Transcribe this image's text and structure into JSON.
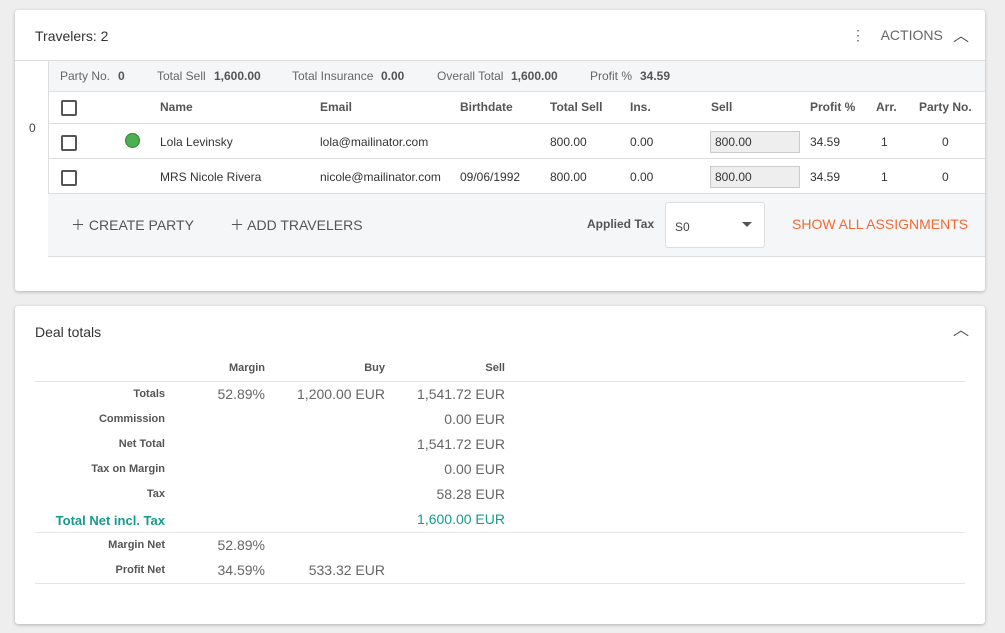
{
  "travelers": {
    "title": "Travelers: 2",
    "actions": "ACTIONS",
    "party_index": "0",
    "summary": [
      {
        "label": "Party No.",
        "value": "0"
      },
      {
        "label": "Total Sell",
        "value": "1,600.00"
      },
      {
        "label": "Total Insurance",
        "value": "0.00"
      },
      {
        "label": "Overall Total",
        "value": "1,600.00"
      },
      {
        "label": "Profit %",
        "value": "34.59"
      }
    ],
    "columns": [
      "Name",
      "Email",
      "Birthdate",
      "Total Sell",
      "Ins.",
      "Sell",
      "Profit %",
      "Arr.",
      "Party No."
    ],
    "rows": [
      {
        "name": "Lola Levinsky",
        "email": "lola@mailinator.com",
        "total_sell": "800.00",
        "ins": "0.00",
        "sell": "800.00",
        "profit": "34.59",
        "arr": "1",
        "party": "0"
      },
      {
        "name": "MRS Nicole Rivera",
        "email": "nicole@mailinator.com",
        "birthdate": "09/06/1992",
        "total_sell": "800.00",
        "ins": "0.00",
        "sell": "800.00",
        "profit": "34.59",
        "arr": "1",
        "party": "0"
      }
    ],
    "create_party": "CREATE PARTY",
    "add_travelers": "ADD TRAVELERS",
    "applied_tax_label": "Applied Tax",
    "applied_tax_value": "S0",
    "show_all": "SHOW ALL ASSIGNMENTS"
  },
  "deal_totals": {
    "title": "Deal totals",
    "columns": [
      "Margin",
      "Buy",
      "Sell"
    ],
    "rows": [
      {
        "label": "Totals",
        "margin": "52.89%",
        "buy": "1,200.00 EUR",
        "sell": "1,541.72 EUR"
      },
      {
        "label": "Commission",
        "sell": "0.00 EUR"
      },
      {
        "label": "Net Total",
        "sell": "1,541.72 EUR"
      },
      {
        "label": "Tax on Margin",
        "sell": "0.00 EUR"
      },
      {
        "label": "Tax",
        "sell": "58.28 EUR"
      },
      {
        "label": "Total Net incl. Tax",
        "sell": "1,600.00 EUR"
      }
    ],
    "net_rows": [
      {
        "label": "Margin Net",
        "margin": "52.89%"
      },
      {
        "label": "Profit Net",
        "margin": "34.59%",
        "buy": "533.32 EUR"
      }
    ]
  }
}
